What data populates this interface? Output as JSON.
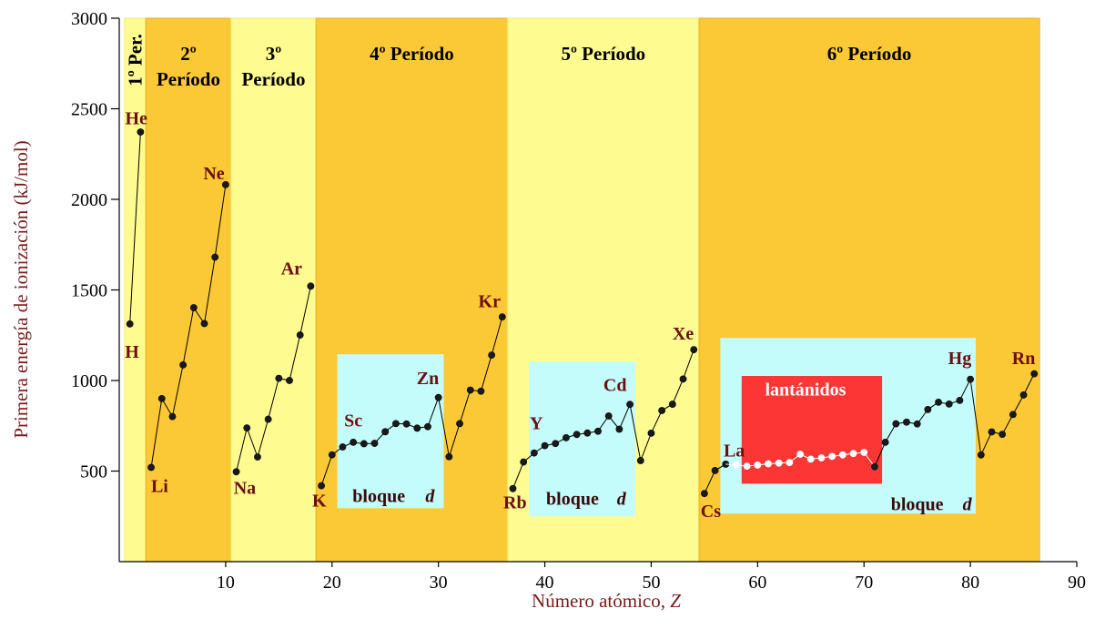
{
  "chart_data": {
    "type": "line",
    "title": "",
    "xlabel": "Número atómico, ",
    "xlabel_var": "Z",
    "ylabel": "Primera energía de ionización (kJ/mol)",
    "xlim": [
      0,
      90
    ],
    "ylim": [
      0,
      3000
    ],
    "xticks": [
      10,
      20,
      30,
      40,
      50,
      60,
      70,
      80,
      90
    ],
    "yticks": [
      500,
      1000,
      1500,
      2000,
      2500,
      3000
    ],
    "grid": false,
    "colors": {
      "band_dark": "#fcc936",
      "band_light": "#fefb90",
      "block_d": "#c4fbfb",
      "lanthanides": "#fc3535",
      "line": "#000000",
      "point": "#1a1a1a",
      "lant_point": "#ffffff",
      "label": "#6b0f0f"
    },
    "periods": [
      {
        "label": "1º Per.",
        "x0": 0.5,
        "x1": 2.5,
        "shade": "light",
        "vertical": true
      },
      {
        "label": "2º",
        "label2": "Período",
        "x0": 2.5,
        "x1": 10.5,
        "shade": "dark"
      },
      {
        "label": "3º",
        "label2": "Período",
        "x0": 10.5,
        "x1": 18.5,
        "shade": "light"
      },
      {
        "label": "4º Período",
        "x0": 18.5,
        "x1": 36.5,
        "shade": "dark"
      },
      {
        "label": "5º Período",
        "x0": 36.5,
        "x1": 54.5,
        "shade": "light"
      },
      {
        "label": "6º Período",
        "x0": 54.5,
        "x1": 86.5,
        "shade": "dark"
      }
    ],
    "regions": [
      {
        "label": "bloque",
        "label_var": "d",
        "x0": 20.5,
        "x1": 30.5,
        "y0": 295,
        "y1": 1145,
        "kind": "block_d",
        "label_x": 24.4,
        "label_y": 330,
        "var_x": 29.2
      },
      {
        "label": "bloque",
        "label_var": "d",
        "x0": 38.5,
        "x1": 48.5,
        "y0": 250,
        "y1": 1105,
        "kind": "block_d",
        "label_x": 42.6,
        "label_y": 315,
        "var_x": 47.2
      },
      {
        "label": "bloque",
        "label_var": "d",
        "x0": 56.5,
        "x1": 80.5,
        "y0": 265,
        "y1": 1235,
        "kind": "block_d",
        "label_x": 75.0,
        "label_y": 285,
        "var_x": 79.7
      },
      {
        "label": "lantánidos",
        "x0": 58.5,
        "x1": 71.7,
        "y0": 430,
        "y1": 1025,
        "kind": "lanthanides",
        "label_x": 64.5,
        "label_y": 918
      }
    ],
    "series": [
      {
        "name": "",
        "segments": [
          [
            1,
            2
          ]
        ],
        "x": [
          1,
          2
        ],
        "y": [
          1312,
          2372
        ]
      },
      {
        "name": "",
        "x": [
          3,
          4,
          5,
          6,
          7,
          8,
          9,
          10
        ],
        "y": [
          520,
          900,
          801,
          1086,
          1402,
          1314,
          1681,
          2081
        ]
      },
      {
        "name": "",
        "x": [
          11,
          12,
          13,
          14,
          15,
          16,
          17,
          18
        ],
        "y": [
          496,
          738,
          578,
          786,
          1012,
          1000,
          1251,
          1521
        ]
      },
      {
        "name": "",
        "x": [
          19,
          20,
          21,
          22,
          23,
          24,
          25,
          26,
          27,
          28,
          29,
          30,
          31,
          32,
          33,
          34,
          35,
          36
        ],
        "y": [
          419,
          590,
          633,
          659,
          651,
          653,
          717,
          762,
          760,
          737,
          745,
          906,
          579,
          762,
          947,
          941,
          1140,
          1351
        ]
      },
      {
        "name": "",
        "x": [
          37,
          38,
          39,
          40,
          41,
          42,
          43,
          44,
          45,
          46,
          47,
          48,
          49,
          50,
          51,
          52,
          53,
          54
        ],
        "y": [
          403,
          550,
          600,
          640,
          652,
          684,
          702,
          710,
          720,
          804,
          731,
          868,
          558,
          709,
          834,
          869,
          1008,
          1170
        ]
      },
      {
        "name": "",
        "x": [
          55,
          56,
          57
        ],
        "y": [
          376,
          503,
          538
        ]
      },
      {
        "name": "",
        "x": [
          57,
          58,
          59,
          60,
          61,
          62,
          63,
          64,
          65,
          66,
          67,
          68,
          69,
          70,
          71
        ],
        "y": [
          538,
          534,
          527,
          533,
          540,
          544,
          547,
          593,
          566,
          573,
          581,
          589,
          597,
          603,
          524
        ],
        "lanthanide": true,
        "skip_first_point": true
      },
      {
        "name": "",
        "x": [
          71,
          72,
          73,
          74,
          75,
          76,
          77,
          78,
          79,
          80,
          81,
          82,
          83,
          84,
          85,
          86
        ],
        "y": [
          524,
          659,
          761,
          770,
          760,
          840,
          880,
          870,
          890,
          1007,
          589,
          716,
          703,
          812,
          920,
          1037
        ]
      }
    ],
    "annotations": [
      {
        "text": "He",
        "x": 1.6,
        "y": 2415
      },
      {
        "text": "H",
        "x": 1.2,
        "y": 1125
      },
      {
        "text": "Li",
        "x": 3.8,
        "y": 385
      },
      {
        "text": "Ne",
        "x": 8.9,
        "y": 2110
      },
      {
        "text": "Na",
        "x": 11.8,
        "y": 375
      },
      {
        "text": "Ar",
        "x": 16.2,
        "y": 1585
      },
      {
        "text": "K",
        "x": 18.8,
        "y": 305
      },
      {
        "text": "Sc",
        "x": 22.0,
        "y": 745
      },
      {
        "text": "Zn",
        "x": 29.0,
        "y": 980
      },
      {
        "text": "Kr",
        "x": 34.8,
        "y": 1405
      },
      {
        "text": "Rb",
        "x": 37.2,
        "y": 295
      },
      {
        "text": "Y",
        "x": 39.2,
        "y": 732
      },
      {
        "text": "Cd",
        "x": 46.6,
        "y": 942
      },
      {
        "text": "Xe",
        "x": 53.0,
        "y": 1225
      },
      {
        "text": "Cs",
        "x": 55.6,
        "y": 245
      },
      {
        "text": "La",
        "x": 57.8,
        "y": 580
      },
      {
        "text": "Hg",
        "x": 79.0,
        "y": 1090
      },
      {
        "text": "Rn",
        "x": 85.0,
        "y": 1090
      }
    ]
  }
}
